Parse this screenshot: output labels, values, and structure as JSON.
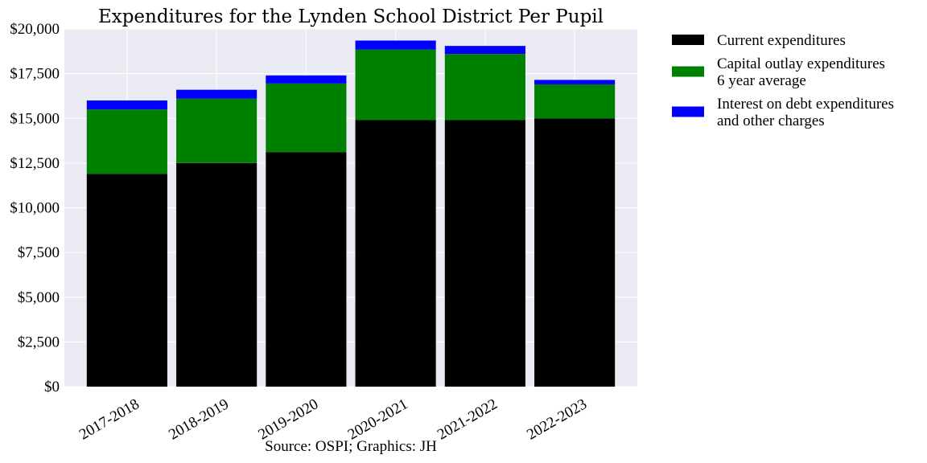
{
  "chart_data": {
    "type": "bar",
    "stacked": true,
    "title": "Expenditures for the Lynden School District Per Pupil",
    "caption": "Source: OSPI; Graphics: JH",
    "categories": [
      "2017-2018",
      "2018-2019",
      "2019-2020",
      "2020-2021",
      "2021-2022",
      "2022-2023"
    ],
    "series": [
      {
        "name": "Current expenditures",
        "name_lines": [
          "Current expenditures"
        ],
        "color": "#000000",
        "values": [
          11900,
          12500,
          13100,
          14900,
          14900,
          15000
        ]
      },
      {
        "name": "Capital outlay expenditures 6 year average",
        "name_lines": [
          "Capital outlay expenditures",
          "6 year average"
        ],
        "color": "#008000",
        "values": [
          3600,
          3600,
          3850,
          3950,
          3700,
          1900
        ]
      },
      {
        "name": "Interest on debt expenditures and other charges",
        "name_lines": [
          "Interest on debt expenditures",
          "and other charges"
        ],
        "color": "#0000ff",
        "values": [
          500,
          500,
          450,
          500,
          450,
          250
        ]
      }
    ],
    "ylim": [
      0,
      20000
    ],
    "yticks": [
      0,
      2500,
      5000,
      7500,
      10000,
      12500,
      15000,
      17500,
      20000
    ],
    "ytick_labels": [
      "$0",
      "$2,500",
      "$5,000",
      "$7,500",
      "$10,000",
      "$12,500",
      "$15,000",
      "$17,500",
      "$20,000"
    ],
    "xlabel": "",
    "ylabel": "",
    "grid": true,
    "legend_position": "outside-right-top",
    "plot_background": "#eaeaf2"
  }
}
